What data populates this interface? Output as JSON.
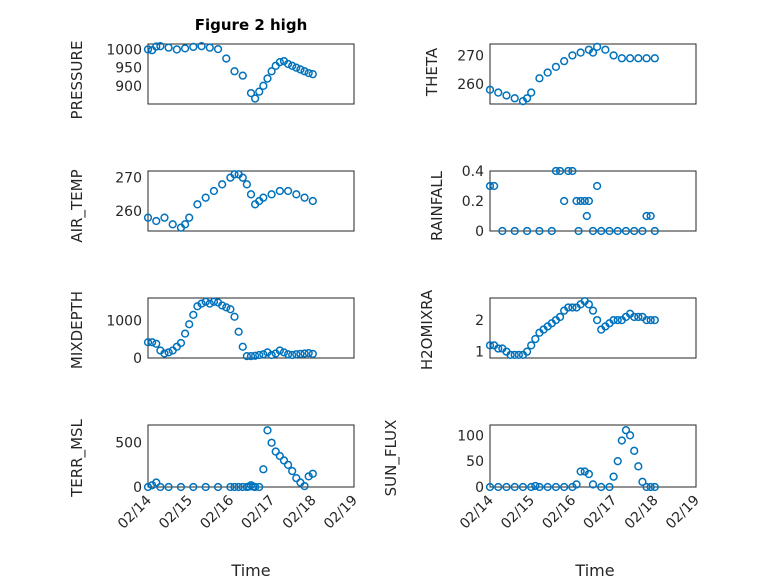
{
  "figure_title": "Figure 2 high",
  "x_axis_label": "Time",
  "x_tick_labels": [
    "02/14",
    "02/15",
    "02/16",
    "02/17",
    "02/18",
    "02/19"
  ],
  "colors": {
    "marker": "#0072bd",
    "axis": "#262626",
    "grid": "#dfdfdf"
  },
  "chart_data": [
    {
      "type": "scatter",
      "ylabel": "PRESSURE",
      "ylim": [
        850,
        1015
      ],
      "yticks": [
        900,
        950,
        1000
      ],
      "grid": true,
      "x": [
        0,
        0.1,
        0.2,
        0.3,
        0.5,
        0.7,
        0.9,
        1.1,
        1.3,
        1.5,
        1.7,
        1.9,
        2.1,
        2.3,
        2.5,
        2.6,
        2.7,
        2.8,
        2.9,
        3.0,
        3.1,
        3.2,
        3.3,
        3.4,
        3.5,
        3.6,
        3.7,
        3.8,
        3.9,
        4.0
      ],
      "values": [
        1000,
        998,
        1008,
        1009,
        1005,
        1000,
        1003,
        1007,
        1009,
        1005,
        1001,
        975,
        940,
        928,
        880,
        865,
        884,
        900,
        920,
        940,
        955,
        965,
        968,
        960,
        955,
        950,
        945,
        940,
        935,
        932
      ]
    },
    {
      "type": "scatter",
      "ylabel": "THETA",
      "ylim": [
        253,
        274
      ],
      "yticks": [
        260,
        270
      ],
      "grid": true,
      "x": [
        0,
        0.2,
        0.4,
        0.6,
        0.8,
        0.9,
        1.0,
        1.2,
        1.4,
        1.6,
        1.8,
        2.0,
        2.2,
        2.4,
        2.5,
        2.6,
        2.8,
        3.0,
        3.2,
        3.4,
        3.6,
        3.8,
        4.0
      ],
      "values": [
        258,
        257,
        256,
        255,
        254,
        255,
        257,
        262,
        264,
        266,
        268,
        270,
        271,
        272,
        271,
        273,
        272,
        270,
        269,
        269,
        269,
        269,
        269
      ]
    },
    {
      "type": "scatter",
      "ylabel": "AIR_TEMP",
      "ylim": [
        254,
        272
      ],
      "yticks": [
        260,
        270
      ],
      "grid": true,
      "x": [
        0,
        0.2,
        0.4,
        0.6,
        0.8,
        0.9,
        1.0,
        1.2,
        1.4,
        1.6,
        1.8,
        2.0,
        2.1,
        2.2,
        2.3,
        2.4,
        2.5,
        2.6,
        2.7,
        2.8,
        3.0,
        3.2,
        3.4,
        3.6,
        3.8,
        4.0
      ],
      "values": [
        258,
        257,
        258,
        256,
        255,
        256,
        258,
        262,
        264,
        266,
        268,
        270,
        271,
        271,
        270,
        268,
        265,
        262,
        263,
        264,
        265,
        266,
        266,
        265,
        264,
        263
      ]
    },
    {
      "type": "scatter",
      "ylabel": "RAINFALL",
      "ylim": [
        0,
        0.4
      ],
      "yticks": [
        0,
        0.2,
        0.4
      ],
      "grid": true,
      "x": [
        0,
        0.1,
        0.3,
        0.6,
        0.9,
        1.2,
        1.5,
        1.6,
        1.7,
        1.8,
        1.9,
        2.0,
        2.1,
        2.15,
        2.2,
        2.3,
        2.35,
        2.4,
        2.5,
        2.6,
        2.7,
        2.9,
        3.1,
        3.3,
        3.5,
        3.7,
        3.8,
        3.9,
        4.0
      ],
      "values": [
        0.3,
        0.3,
        0,
        0,
        0,
        0,
        0,
        0.4,
        0.4,
        0.2,
        0.4,
        0.4,
        0.2,
        0,
        0.2,
        0.2,
        0.1,
        0.2,
        0,
        0.3,
        0,
        0,
        0,
        0,
        0,
        0,
        0.1,
        0.1,
        0
      ]
    },
    {
      "type": "scatter",
      "ylabel": "MIXDEPTH",
      "ylim": [
        0,
        1600
      ],
      "yticks": [
        0,
        1000
      ],
      "grid": true,
      "x": [
        0,
        0.1,
        0.2,
        0.3,
        0.4,
        0.5,
        0.6,
        0.7,
        0.8,
        0.9,
        1.0,
        1.1,
        1.2,
        1.3,
        1.4,
        1.5,
        1.6,
        1.7,
        1.8,
        1.9,
        2.0,
        2.1,
        2.2,
        2.3,
        2.4,
        2.5,
        2.6,
        2.7,
        2.8,
        2.9,
        3.0,
        3.1,
        3.2,
        3.3,
        3.4,
        3.5,
        3.6,
        3.7,
        3.8,
        3.9,
        4.0
      ],
      "values": [
        420,
        420,
        380,
        200,
        120,
        150,
        200,
        300,
        400,
        650,
        900,
        1150,
        1380,
        1450,
        1500,
        1450,
        1500,
        1480,
        1400,
        1350,
        1300,
        1100,
        700,
        300,
        50,
        50,
        60,
        80,
        100,
        150,
        80,
        120,
        200,
        150,
        100,
        80,
        100,
        110,
        120,
        130,
        110
      ]
    },
    {
      "type": "scatter",
      "ylabel": "H2OMIXRA",
      "ylim": [
        0.8,
        2.7
      ],
      "yticks": [
        1,
        2
      ],
      "grid": true,
      "x": [
        0,
        0.1,
        0.2,
        0.3,
        0.4,
        0.5,
        0.6,
        0.7,
        0.8,
        0.9,
        1.0,
        1.1,
        1.2,
        1.3,
        1.4,
        1.5,
        1.6,
        1.7,
        1.8,
        1.9,
        2.0,
        2.1,
        2.2,
        2.3,
        2.4,
        2.5,
        2.6,
        2.7,
        2.8,
        2.9,
        3.0,
        3.1,
        3.2,
        3.3,
        3.4,
        3.5,
        3.6,
        3.7,
        3.8,
        3.9,
        4.0
      ],
      "values": [
        1.2,
        1.2,
        1.1,
        1.1,
        1.0,
        0.9,
        0.9,
        0.9,
        0.9,
        1.0,
        1.2,
        1.4,
        1.6,
        1.7,
        1.8,
        1.9,
        2.0,
        2.1,
        2.3,
        2.4,
        2.4,
        2.4,
        2.5,
        2.6,
        2.5,
        2.3,
        2.0,
        1.7,
        1.8,
        1.9,
        2.0,
        2.0,
        2.0,
        2.1,
        2.2,
        2.1,
        2.1,
        2.1,
        2.0,
        2.0,
        2.0
      ]
    },
    {
      "type": "scatter",
      "ylabel": "TERR_MSL",
      "ylim": [
        0,
        700
      ],
      "yticks": [
        0,
        500
      ],
      "grid": true,
      "x": [
        0,
        0.1,
        0.2,
        0.3,
        0.5,
        0.8,
        1.1,
        1.4,
        1.7,
        2.0,
        2.1,
        2.2,
        2.3,
        2.4,
        2.45,
        2.5,
        2.55,
        2.6,
        2.7,
        2.8,
        2.9,
        3.0,
        3.1,
        3.2,
        3.3,
        3.4,
        3.5,
        3.6,
        3.7,
        3.8,
        3.9,
        4.0
      ],
      "values": [
        0,
        20,
        50,
        0,
        0,
        0,
        0,
        0,
        0,
        0,
        0,
        0,
        0,
        0,
        5,
        20,
        5,
        0,
        0,
        200,
        640,
        500,
        400,
        350,
        300,
        250,
        180,
        100,
        50,
        10,
        120,
        150
      ]
    },
    {
      "type": "scatter",
      "ylabel": "SUN_FLUX",
      "ylim": [
        0,
        120
      ],
      "yticks": [
        0,
        50,
        100
      ],
      "grid": true,
      "x": [
        0,
        0.2,
        0.4,
        0.6,
        0.8,
        1.0,
        1.1,
        1.2,
        1.4,
        1.6,
        1.8,
        2.0,
        2.1,
        2.2,
        2.3,
        2.4,
        2.5,
        2.7,
        2.9,
        3.0,
        3.1,
        3.2,
        3.3,
        3.4,
        3.5,
        3.6,
        3.7,
        3.8,
        3.9,
        4.0
      ],
      "values": [
        0,
        0,
        0,
        0,
        0,
        0,
        2,
        0,
        0,
        0,
        0,
        0,
        5,
        30,
        30,
        25,
        5,
        0,
        0,
        20,
        50,
        90,
        110,
        100,
        70,
        40,
        10,
        0,
        0,
        0
      ]
    }
  ]
}
